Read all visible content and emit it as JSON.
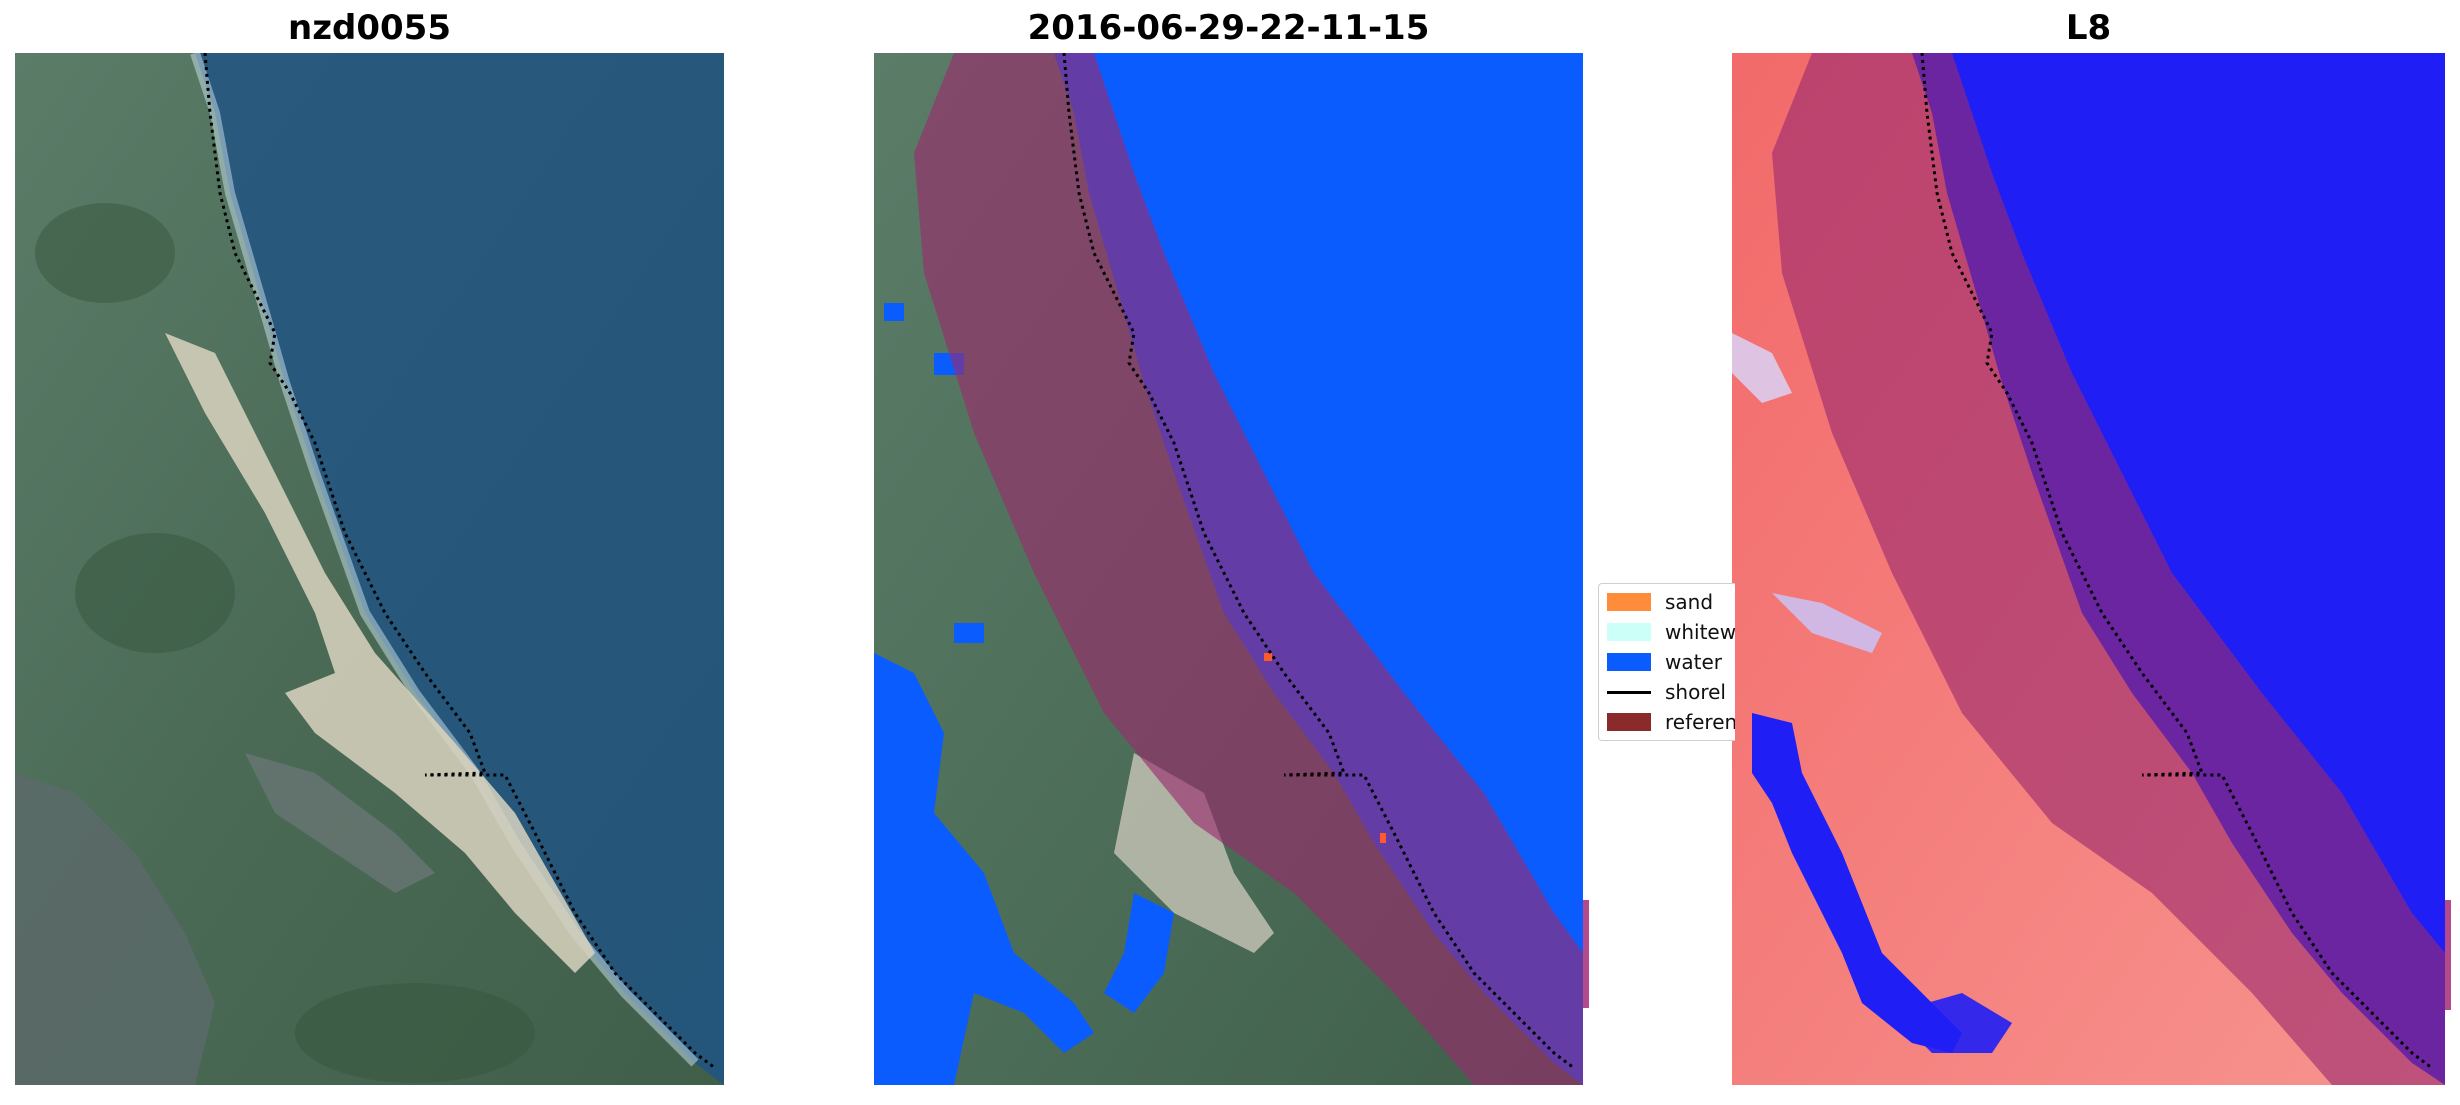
{
  "panels": [
    {
      "title": "nzd0055"
    },
    {
      "title": "2016-06-29-22-11-15"
    },
    {
      "title": "L8"
    }
  ],
  "legend": {
    "items": [
      {
        "label": "sand",
        "color": "#ff8c3a",
        "kind": "patch"
      },
      {
        "label": "whitew",
        "color": "#ccfff8",
        "kind": "patch"
      },
      {
        "label": "water",
        "color": "#0a5cff",
        "kind": "patch"
      },
      {
        "label": "shorel",
        "color": "#000000",
        "kind": "line"
      },
      {
        "label": "referen",
        "color": "#8b2a2a",
        "kind": "patch"
      }
    ]
  },
  "colors": {
    "ocean": "#24557a",
    "land": "#4f6f5c",
    "sand_beach": "#d9d3bf",
    "water_class": "#0a5cff",
    "reference_buffer": "#9b2a6e",
    "l8_land": "#f27a78",
    "l8_water": "#1f1ff5"
  }
}
